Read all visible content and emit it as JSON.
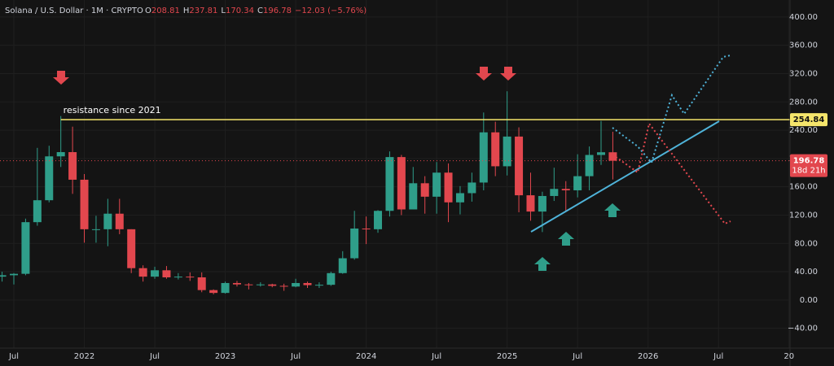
{
  "chart_data": {
    "type": "candlestick",
    "title": "Solana / U.S. Dollar · 1M · CRYPTO",
    "ohlc_legend": [
      {
        "key": "O",
        "value": 208.81
      },
      {
        "key": "H",
        "value": 237.81
      },
      {
        "key": "L",
        "value": 170.34
      },
      {
        "key": "C",
        "value": 196.78
      }
    ],
    "change": "−12.03 (−5.76%)",
    "x": [
      "2021-06",
      "2021-07",
      "2021-08",
      "2021-09",
      "2021-10",
      "2021-11",
      "2021-12",
      "2022-01",
      "2022-02",
      "2022-03",
      "2022-04",
      "2022-05",
      "2022-06",
      "2022-07",
      "2022-08",
      "2022-09",
      "2022-10",
      "2022-11",
      "2022-12",
      "2023-01",
      "2023-02",
      "2023-03",
      "2023-04",
      "2023-05",
      "2023-06",
      "2023-07",
      "2023-08",
      "2023-09",
      "2023-10",
      "2023-11",
      "2023-12",
      "2024-01",
      "2024-02",
      "2024-03",
      "2024-04",
      "2024-05",
      "2024-06",
      "2024-07",
      "2024-08",
      "2024-09",
      "2024-10",
      "2024-11",
      "2024-12",
      "2025-01",
      "2025-02",
      "2025-03",
      "2025-04",
      "2025-05",
      "2025-06",
      "2025-07",
      "2025-08",
      "2025-09",
      "2025-10"
    ],
    "open": [
      33,
      35,
      37,
      110,
      141,
      203,
      209,
      170,
      100,
      100,
      122,
      100,
      45,
      33,
      42,
      32,
      33,
      32,
      14,
      10,
      24,
      22,
      21,
      22,
      20,
      19,
      24,
      21,
      21.5,
      38,
      59,
      101,
      100,
      126,
      202,
      128,
      165,
      146,
      180,
      138,
      151,
      166,
      237,
      189,
      231,
      148,
      125,
      147,
      157,
      155,
      175,
      205,
      208.81
    ],
    "high": [
      40,
      38,
      115,
      215,
      218,
      260,
      245,
      178,
      119,
      143,
      143,
      100,
      49,
      47,
      48,
      38,
      39,
      39,
      15,
      26,
      27,
      24,
      25,
      23,
      23,
      30,
      26,
      25,
      40,
      69,
      126,
      118,
      127,
      210,
      205,
      188,
      175,
      195,
      193,
      161,
      180,
      265,
      252,
      295,
      244,
      180,
      153,
      187,
      168,
      206,
      217,
      253,
      237.81
    ],
    "low": [
      26,
      22,
      35,
      105,
      138,
      188,
      150,
      81,
      81,
      76,
      93,
      38,
      26,
      30,
      30,
      29,
      27,
      11,
      8,
      9,
      19,
      15,
      19,
      18,
      13,
      18,
      17,
      17,
      20,
      37,
      57,
      79,
      95,
      118,
      120,
      128,
      122,
      122,
      110,
      121,
      139,
      155,
      175,
      176,
      124,
      112,
      96,
      140,
      126,
      145,
      155,
      191,
      170.34
    ],
    "close": [
      35,
      37,
      110,
      141,
      203,
      209,
      170,
      100,
      100,
      122,
      100,
      45,
      33,
      42,
      32,
      33,
      32,
      14,
      10,
      24,
      22,
      21,
      22,
      20,
      19,
      24,
      21,
      21.5,
      38,
      59,
      101,
      100,
      126,
      202,
      128,
      165,
      146,
      180,
      138,
      151,
      166,
      237,
      189,
      231,
      148,
      125,
      147,
      157,
      155,
      175,
      205,
      208.81,
      196.78
    ],
    "up_color": "#2f9e8a",
    "down_color": "#e2474e",
    "ylim": [
      -68,
      424
    ],
    "yticks": [
      {
        "value": -40,
        "label": "−40.00"
      },
      {
        "value": 0,
        "label": "0.00"
      },
      {
        "value": 40,
        "label": "40.00"
      },
      {
        "value": 80,
        "label": "80.00"
      },
      {
        "value": 120,
        "label": "120.00"
      },
      {
        "value": 160,
        "label": "160.00"
      },
      {
        "value": 200,
        "label": "200.00"
      },
      {
        "value": 240,
        "label": "240.00"
      },
      {
        "value": 280,
        "label": "280.00"
      },
      {
        "value": 320,
        "label": "320.00"
      },
      {
        "value": 360,
        "label": "360.00"
      },
      {
        "value": 400,
        "label": "400.00"
      }
    ],
    "xticks": [
      {
        "value": "2021-07",
        "label": "Jul"
      },
      {
        "value": "2022-01",
        "label": "2022"
      },
      {
        "value": "2022-07",
        "label": "Jul"
      },
      {
        "value": "2023-01",
        "label": "2023"
      },
      {
        "value": "2023-07",
        "label": "Jul"
      },
      {
        "value": "2024-01",
        "label": "2024"
      },
      {
        "value": "2024-07",
        "label": "Jul"
      },
      {
        "value": "2025-01",
        "label": "2025"
      },
      {
        "value": "2025-07",
        "label": "Jul"
      },
      {
        "value": "2026-01",
        "label": "2026"
      },
      {
        "value": "2026-07",
        "label": "Jul"
      },
      {
        "value": "2027-01",
        "label": "20"
      }
    ],
    "grid": true,
    "resistance": {
      "value": 254.84,
      "label": "resistance since 2021",
      "color": "#f5e56b"
    },
    "last_price": 196.78,
    "countdown": "18d 21h"
  }
}
